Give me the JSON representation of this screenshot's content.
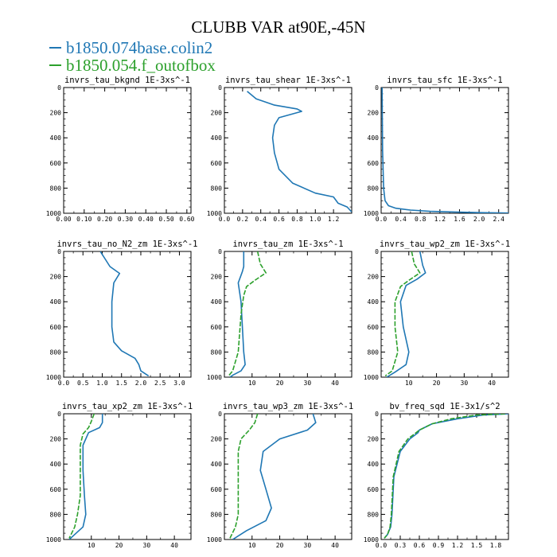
{
  "title": "CLUBB VAR at90E,-45N",
  "legend": [
    {
      "name": "b1850.074base.colin2",
      "color": "#1f77b4"
    },
    {
      "name": "b1850.054.f_outofbox",
      "color": "#2ca02c"
    }
  ],
  "chart_data": [
    {
      "type": "line",
      "title": "invrs_tau_bkgnd   1E-3xs^-1",
      "xlim": [
        0,
        0.62
      ],
      "ylim": [
        1000,
        0
      ],
      "xticks": [
        0,
        0.1,
        0.2,
        0.3,
        0.4,
        0.5,
        0.6
      ],
      "xtick_labels": [
        "0.00",
        "0.10",
        "0.20",
        "0.30",
        "0.40",
        "0.50",
        "0.60"
      ],
      "yticks": [
        0,
        200,
        400,
        600,
        800,
        1000
      ],
      "series": []
    },
    {
      "type": "line",
      "title": "invrs_tau_shear   1E-3xs^-1",
      "xlim": [
        0,
        1.4
      ],
      "ylim": [
        1000,
        0
      ],
      "xticks": [
        0,
        0.2,
        0.4,
        0.6,
        0.8,
        1.0,
        1.2
      ],
      "xtick_labels": [
        "0.0",
        "0.2",
        "0.4",
        "0.6",
        "0.8",
        "1.0",
        "1.2"
      ],
      "yticks": [
        0,
        200,
        400,
        600,
        800,
        1000
      ],
      "series": [
        {
          "color": "#1f77b4",
          "x": [
            0.25,
            0.35,
            0.55,
            0.8,
            0.85,
            0.6,
            0.55,
            0.53,
            0.55,
            0.6,
            0.75,
            1.0,
            1.2,
            1.25,
            1.35,
            1.4
          ],
          "y": [
            30,
            90,
            140,
            170,
            190,
            240,
            300,
            400,
            520,
            650,
            760,
            840,
            870,
            920,
            950,
            990
          ]
        }
      ]
    },
    {
      "type": "line",
      "title": "invrs_tau_sfc   1E-3xs^-1",
      "xlim": [
        0,
        2.6
      ],
      "ylim": [
        1000,
        0
      ],
      "xticks": [
        0,
        0.4,
        0.8,
        1.2,
        1.6,
        2.0,
        2.4
      ],
      "xtick_labels": [
        "0.0",
        "0.4",
        "0.8",
        "1.2",
        "1.6",
        "2.0",
        "2.4"
      ],
      "yticks": [
        0,
        200,
        400,
        600,
        800,
        1000
      ],
      "series": [
        {
          "color": "#1f77b4",
          "x": [
            0.02,
            0.03,
            0.05,
            0.08,
            0.15,
            0.3,
            0.6,
            1.0,
            1.5,
            2.0,
            2.6
          ],
          "y": [
            0,
            500,
            800,
            900,
            940,
            960,
            975,
            985,
            990,
            995,
            998
          ]
        }
      ]
    },
    {
      "type": "line",
      "title": "invrs_tau_no_N2_zm   1E-3xs^-1",
      "xlim": [
        0,
        3.3
      ],
      "ylim": [
        1000,
        0
      ],
      "xticks": [
        0,
        0.5,
        1.0,
        1.5,
        2.0,
        2.5,
        3.0
      ],
      "xtick_labels": [
        "0.0",
        "0.5",
        "1.0",
        "1.5",
        "2.0",
        "2.5",
        "3.0"
      ],
      "yticks": [
        0,
        200,
        400,
        600,
        800,
        1000
      ],
      "series": [
        {
          "color": "#1f77b4",
          "x": [
            0.95,
            1.2,
            1.45,
            1.3,
            1.25,
            1.25,
            1.3,
            1.5,
            1.85,
            1.95,
            2.0,
            2.2
          ],
          "y": [
            0,
            120,
            175,
            250,
            400,
            600,
            720,
            790,
            850,
            900,
            950,
            990
          ]
        }
      ]
    },
    {
      "type": "line",
      "title": "invrs_tau_zm   1E-3xs^-1",
      "xlim": [
        0,
        46
      ],
      "ylim": [
        1000,
        0
      ],
      "xticks": [
        10,
        20,
        30,
        40
      ],
      "xtick_labels": [
        "10",
        "20",
        "30",
        "40"
      ],
      "yticks": [
        0,
        200,
        400,
        600,
        800,
        1000
      ],
      "series": [
        {
          "color": "#1f77b4",
          "x": [
            7,
            7,
            6.5,
            5,
            6,
            6.5,
            7,
            7.5,
            6,
            3,
            2
          ],
          "y": [
            0,
            120,
            160,
            250,
            400,
            600,
            800,
            900,
            950,
            985,
            1000
          ]
        },
        {
          "color": "#2ca02c",
          "x": [
            12,
            13,
            15,
            11,
            8,
            7,
            6,
            5,
            3,
            1.5
          ],
          "y": [
            0,
            100,
            170,
            230,
            280,
            350,
            500,
            800,
            950,
            990
          ]
        }
      ]
    },
    {
      "type": "line",
      "title": "invrs_tau_wp2_zm   1E-3xs^-1",
      "xlim": [
        0,
        46
      ],
      "ylim": [
        1000,
        0
      ],
      "xticks": [
        10,
        20,
        30,
        40
      ],
      "xtick_labels": [
        "10",
        "20",
        "30",
        "40"
      ],
      "yticks": [
        0,
        200,
        400,
        600,
        800,
        1000
      ],
      "series": [
        {
          "color": "#1f77b4",
          "x": [
            14,
            15,
            16,
            13,
            9,
            7,
            8,
            10,
            9,
            5,
            2
          ],
          "y": [
            0,
            110,
            170,
            220,
            270,
            400,
            600,
            800,
            900,
            960,
            1000
          ]
        },
        {
          "color": "#2ca02c",
          "x": [
            11,
            12,
            14,
            10,
            7,
            5,
            5,
            6,
            4,
            1.5
          ],
          "y": [
            0,
            100,
            170,
            230,
            280,
            400,
            600,
            800,
            950,
            990
          ]
        }
      ]
    },
    {
      "type": "line",
      "title": "invrs_tau_xp2_zm   1E-3xs^-1",
      "xlim": [
        0,
        46
      ],
      "ylim": [
        1000,
        0
      ],
      "xticks": [
        10,
        20,
        30,
        40
      ],
      "xtick_labels": [
        "10",
        "20",
        "30",
        "40"
      ],
      "yticks": [
        0,
        200,
        400,
        600,
        800,
        1000
      ],
      "series": [
        {
          "color": "#1f77b4",
          "x": [
            14,
            14,
            13,
            9,
            7,
            7,
            7.5,
            8,
            7,
            4,
            2
          ],
          "y": [
            0,
            70,
            110,
            150,
            250,
            450,
            650,
            800,
            900,
            960,
            1000
          ]
        },
        {
          "color": "#2ca02c",
          "x": [
            11,
            10,
            9,
            7,
            6,
            6,
            6,
            5,
            4,
            2
          ],
          "y": [
            0,
            60,
            110,
            160,
            250,
            450,
            650,
            800,
            900,
            990
          ]
        }
      ]
    },
    {
      "type": "line",
      "title": "invrs_tau_wp3_zm   1E-3xs^-1",
      "xlim": [
        0,
        46
      ],
      "ylim": [
        1000,
        0
      ],
      "xticks": [
        10,
        20,
        30,
        40
      ],
      "xtick_labels": [
        "10",
        "20",
        "30",
        "40"
      ],
      "yticks": [
        0,
        200,
        400,
        600,
        800,
        1000
      ],
      "series": [
        {
          "color": "#1f77b4",
          "x": [
            32,
            33,
            30,
            20,
            14,
            13,
            15,
            17,
            15,
            8,
            3
          ],
          "y": [
            0,
            70,
            130,
            200,
            300,
            450,
            600,
            750,
            850,
            930,
            1000
          ]
        },
        {
          "color": "#2ca02c",
          "x": [
            12,
            11,
            9,
            6,
            5,
            5,
            5,
            5,
            4,
            2
          ],
          "y": [
            0,
            70,
            130,
            200,
            300,
            500,
            650,
            800,
            900,
            990
          ]
        }
      ]
    },
    {
      "type": "line",
      "title": "bv_freq_sqd   1E-3x1/s^2",
      "xlim": [
        0,
        2.0
      ],
      "ylim": [
        1000,
        0
      ],
      "xticks": [
        0,
        0.3,
        0.6,
        0.9,
        1.2,
        1.5,
        1.8
      ],
      "xtick_labels": [
        "0.0",
        "0.3",
        "0.6",
        "0.9",
        "1.2",
        "1.5",
        "1.8"
      ],
      "yticks": [
        0,
        200,
        400,
        600,
        800,
        1000
      ],
      "series": [
        {
          "color": "#1f77b4",
          "x": [
            2.0,
            1.6,
            1.2,
            0.8,
            0.6,
            0.58,
            0.45,
            0.3,
            0.2,
            0.18,
            0.17,
            0.15,
            0.1,
            0.05
          ],
          "y": [
            0,
            10,
            40,
            80,
            130,
            150,
            200,
            300,
            500,
            700,
            800,
            900,
            960,
            990
          ]
        },
        {
          "color": "#2ca02c",
          "x": [
            1.95,
            1.5,
            1.1,
            0.8,
            0.6,
            0.55,
            0.42,
            0.28,
            0.19,
            0.17,
            0.16,
            0.14,
            0.1,
            0.05
          ],
          "y": [
            0,
            10,
            40,
            80,
            130,
            150,
            200,
            300,
            500,
            700,
            800,
            900,
            960,
            990
          ]
        }
      ]
    }
  ]
}
